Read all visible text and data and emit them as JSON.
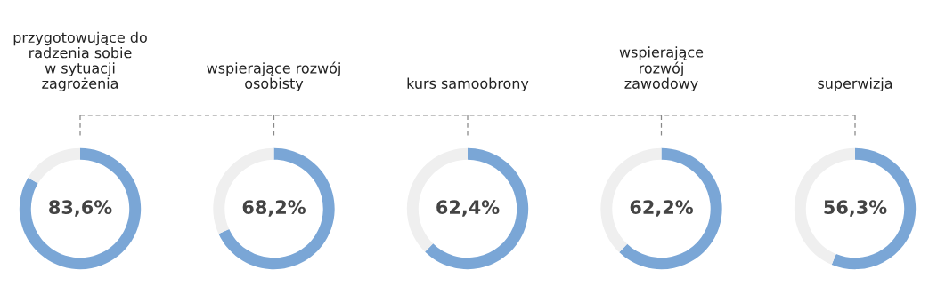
{
  "chart_data": [
    {
      "type": "donut",
      "title": "przygotowujące do\nradzenia sobie\nw sytuacji\nzagrożenia",
      "categories": [
        null,
        null
      ],
      "values": [
        83.6,
        16.4
      ],
      "colors": [
        "#7aa6d6",
        "#efefef"
      ],
      "value_labels": [
        "83,6%",
        null
      ]
    },
    {
      "type": "donut",
      "title": "wspierające rozwój\nosobisty",
      "categories": [
        null,
        null
      ],
      "values": [
        68.2,
        31.8
      ],
      "colors": [
        "#7aa6d6",
        "#efefef"
      ],
      "value_labels": [
        "68,2%",
        null
      ]
    },
    {
      "type": "donut",
      "title": "kurs samoobrony",
      "categories": [
        null,
        null
      ],
      "values": [
        62.4,
        37.6
      ],
      "colors": [
        "#7aa6d6",
        "#efefef"
      ],
      "value_labels": [
        "62,4%",
        null
      ]
    },
    {
      "type": "donut",
      "title": "wspierające\nrozwój\nzawodowy",
      "categories": [
        null,
        null
      ],
      "values": [
        62.2,
        37.8
      ],
      "colors": [
        "#7aa6d6",
        "#efefef"
      ],
      "value_labels": [
        "62,2%",
        null
      ]
    },
    {
      "type": "donut",
      "title": "superwizja",
      "categories": [
        null,
        null
      ],
      "values": [
        56.3,
        43.7
      ],
      "colors": [
        "#7aa6d6",
        "#efefef"
      ],
      "value_labels": [
        "56,3%",
        null
      ]
    }
  ]
}
